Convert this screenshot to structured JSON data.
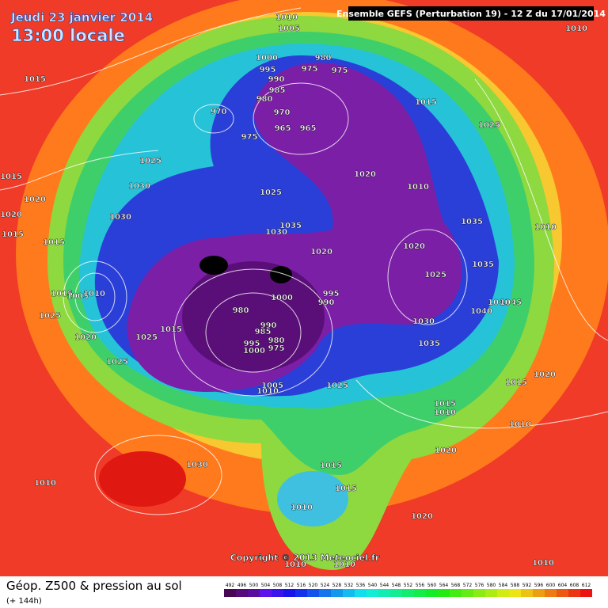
{
  "header": {
    "date": "Jeudi 23 janvier 2014",
    "time": "13:00 locale",
    "run": "Ensemble GEFS (Perturbation 19)  -  12 Z du 17/01/2014"
  },
  "footer": {
    "title": "Géop. Z500 & pression au sol",
    "lead": "(+ 144h)",
    "copyright": "Copyright © 2013 Meteociel.fr",
    "scale_labels": [
      492,
      496,
      500,
      504,
      508,
      512,
      516,
      520,
      524,
      528,
      532,
      536,
      540,
      544,
      548,
      552,
      556,
      560,
      564,
      568,
      572,
      576,
      580,
      584,
      588,
      592,
      596,
      600,
      604,
      608,
      612
    ]
  },
  "isobar_labels": [
    1010,
    1005,
    1010,
    1015,
    1000,
    980,
    995,
    975,
    975,
    990,
    985,
    980,
    1015,
    970,
    970,
    965,
    965,
    1025,
    975,
    1025,
    1020,
    1015,
    1030,
    1010,
    1020,
    1025,
    1030,
    1020,
    1035,
    1035,
    1010,
    1015,
    1030,
    1015,
    1020,
    1020,
    1035,
    1025,
    1015,
    1005,
    1010,
    1000,
    995,
    990,
    1040,
    1045,
    980,
    1025,
    1030,
    990,
    1040,
    985,
    1015,
    980,
    1025,
    995,
    975,
    1020,
    1000,
    1035,
    1025,
    1020,
    1015,
    1005,
    1010,
    1025,
    1015,
    1010,
    1010,
    1020,
    1030,
    1015,
    1010,
    1015,
    1010,
    1020,
    1010,
    1010,
    1010
  ]
}
